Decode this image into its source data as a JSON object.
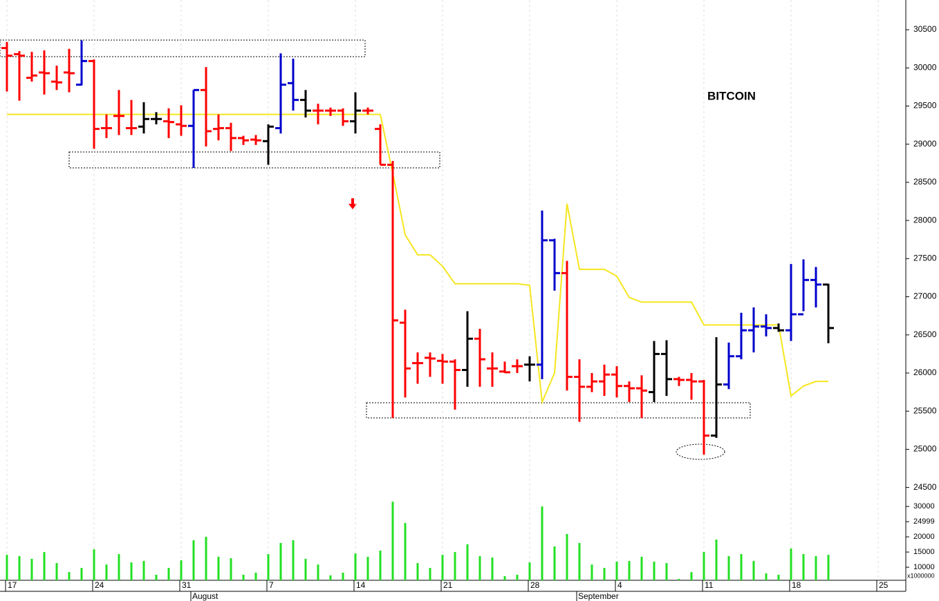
{
  "chart_data": {
    "type": "ohlc",
    "title": "BITCOIN",
    "categories": [
      "17",
      null,
      null,
      null,
      null,
      null,
      null,
      "24",
      null,
      null,
      null,
      null,
      null,
      null,
      "31",
      null,
      null,
      null,
      null,
      null,
      null,
      "7",
      null,
      null,
      null,
      null,
      null,
      null,
      "14",
      null,
      null,
      null,
      null,
      null,
      null,
      "21",
      null,
      null,
      null,
      null,
      null,
      null,
      "28",
      null,
      null,
      null,
      null,
      null,
      null,
      "4",
      null,
      null,
      null,
      null,
      null,
      null,
      "11",
      null,
      null,
      null,
      null,
      null,
      null,
      "18",
      null,
      null,
      null,
      null,
      null,
      null,
      "25"
    ],
    "month_labels": [
      null,
      null,
      null,
      null,
      null,
      null,
      null,
      null,
      null,
      null,
      null,
      null,
      null,
      null,
      null,
      "August",
      null,
      null,
      null,
      null,
      null,
      null,
      null,
      null,
      null,
      null,
      null,
      null,
      null,
      null,
      null,
      null,
      null,
      null,
      null,
      null,
      null,
      null,
      null,
      null,
      null,
      null,
      null,
      null,
      null,
      null,
      "September",
      null,
      null,
      null,
      null,
      null,
      null,
      null,
      null,
      null,
      null,
      null,
      null,
      null,
      null,
      null,
      null,
      null,
      null,
      null,
      null,
      null,
      null,
      null,
      null
    ],
    "ylim": [
      24370,
      30890
    ],
    "yticks": [
      24500,
      25000,
      25500,
      26000,
      26500,
      27000,
      27500,
      28000,
      28500,
      29000,
      29500,
      30000,
      30500
    ],
    "ohlc": [
      {
        "open": 30260,
        "high": 30340,
        "low": 29690,
        "close": 30160,
        "color": "#ff0000"
      },
      {
        "open": 30180,
        "high": 30220,
        "low": 29570,
        "close": 30160,
        "color": "#ff0000"
      },
      {
        "open": 29870,
        "high": 30210,
        "low": 29820,
        "close": 29900,
        "color": "#ff0000"
      },
      {
        "open": 29940,
        "high": 30230,
        "low": 29650,
        "close": 29930,
        "color": "#ff0000"
      },
      {
        "open": 29820,
        "high": 30030,
        "low": 29710,
        "close": 29810,
        "color": "#ff0000"
      },
      {
        "open": 29940,
        "high": 30250,
        "low": 29680,
        "close": 29930,
        "color": "#ff0000"
      },
      {
        "open": 29780,
        "high": 30360,
        "low": 29770,
        "close": 30090,
        "color": "#0000cc"
      },
      {
        "open": 30090,
        "high": 30110,
        "low": 28940,
        "close": 29200,
        "color": "#ff0000"
      },
      {
        "open": 29210,
        "high": 29390,
        "low": 29080,
        "close": 29210,
        "color": "#ff0000"
      },
      {
        "open": 29370,
        "high": 29710,
        "low": 29120,
        "close": 29370,
        "color": "#ff0000"
      },
      {
        "open": 29210,
        "high": 29580,
        "low": 29120,
        "close": 29210,
        "color": "#ff0000"
      },
      {
        "open": 29230,
        "high": 29550,
        "low": 29140,
        "close": 29330,
        "color": "#000000"
      },
      {
        "open": 29330,
        "high": 29420,
        "low": 29260,
        "close": 29330,
        "color": "#000000"
      },
      {
        "open": 29300,
        "high": 29470,
        "low": 29080,
        "close": 29290,
        "color": "#ff0000"
      },
      {
        "open": 29260,
        "high": 29510,
        "low": 29110,
        "close": 29240,
        "color": "#ff0000"
      },
      {
        "open": 29240,
        "high": 29710,
        "low": 28690,
        "close": 29710,
        "color": "#0000cc"
      },
      {
        "open": 29710,
        "high": 30010,
        "low": 28970,
        "close": 29170,
        "color": "#ff0000"
      },
      {
        "open": 29200,
        "high": 29390,
        "low": 29050,
        "close": 29210,
        "color": "#ff0000"
      },
      {
        "open": 29210,
        "high": 29280,
        "low": 28910,
        "close": 29080,
        "color": "#ff0000"
      },
      {
        "open": 29080,
        "high": 29110,
        "low": 28990,
        "close": 29050,
        "color": "#ff0000"
      },
      {
        "open": 29060,
        "high": 29120,
        "low": 28990,
        "close": 29050,
        "color": "#ff0000"
      },
      {
        "open": 29040,
        "high": 29260,
        "low": 28730,
        "close": 29230,
        "color": "#000000"
      },
      {
        "open": 29210,
        "high": 30190,
        "low": 29140,
        "close": 29780,
        "color": "#0000cc"
      },
      {
        "open": 29800,
        "high": 30120,
        "low": 29440,
        "close": 29580,
        "color": "#0000cc"
      },
      {
        "open": 29580,
        "high": 29710,
        "low": 29350,
        "close": 29440,
        "color": "#000000"
      },
      {
        "open": 29440,
        "high": 29530,
        "low": 29260,
        "close": 29440,
        "color": "#ff0000"
      },
      {
        "open": 29440,
        "high": 29480,
        "low": 29370,
        "close": 29440,
        "color": "#ff0000"
      },
      {
        "open": 29440,
        "high": 29470,
        "low": 29240,
        "close": 29300,
        "color": "#ff0000"
      },
      {
        "open": 29300,
        "high": 29680,
        "low": 29140,
        "close": 29440,
        "color": "#000000"
      },
      {
        "open": 29440,
        "high": 29480,
        "low": 29390,
        "close": 29440,
        "color": "#ff0000"
      },
      {
        "open": 29200,
        "high": 29260,
        "low": 28730,
        "close": 28730,
        "color": "#ff0000"
      },
      {
        "open": 28730,
        "high": 28780,
        "low": 25410,
        "close": 26690,
        "color": "#ff0000"
      },
      {
        "open": 26660,
        "high": 26830,
        "low": 25680,
        "close": 26060,
        "color": "#ff0000"
      },
      {
        "open": 26130,
        "high": 26270,
        "low": 25860,
        "close": 26130,
        "color": "#ff0000"
      },
      {
        "open": 26200,
        "high": 26270,
        "low": 25950,
        "close": 26190,
        "color": "#ff0000"
      },
      {
        "open": 26160,
        "high": 26250,
        "low": 25860,
        "close": 26150,
        "color": "#ff0000"
      },
      {
        "open": 26150,
        "high": 26180,
        "low": 25520,
        "close": 26040,
        "color": "#ff0000"
      },
      {
        "open": 26040,
        "high": 26810,
        "low": 25820,
        "close": 26450,
        "color": "#000000"
      },
      {
        "open": 26450,
        "high": 26580,
        "low": 25820,
        "close": 26180,
        "color": "#ff0000"
      },
      {
        "open": 26060,
        "high": 26270,
        "low": 25820,
        "close": 26060,
        "color": "#ff0000"
      },
      {
        "open": 26020,
        "high": 26150,
        "low": 26000,
        "close": 26010,
        "color": "#ff0000"
      },
      {
        "open": 26090,
        "high": 26180,
        "low": 26000,
        "close": 26090,
        "color": "#ff0000"
      },
      {
        "open": 26110,
        "high": 26220,
        "low": 25890,
        "close": 26110,
        "color": "#000000"
      },
      {
        "open": 26110,
        "high": 28130,
        "low": 25920,
        "close": 27740,
        "color": "#0000cc"
      },
      {
        "open": 27740,
        "high": 27760,
        "low": 27080,
        "close": 27310,
        "color": "#0000cc"
      },
      {
        "open": 27310,
        "high": 27470,
        "low": 25770,
        "close": 25950,
        "color": "#ff0000"
      },
      {
        "open": 25950,
        "high": 26180,
        "low": 25360,
        "close": 25820,
        "color": "#ff0000"
      },
      {
        "open": 25820,
        "high": 26000,
        "low": 25750,
        "close": 25890,
        "color": "#ff0000"
      },
      {
        "open": 25890,
        "high": 26110,
        "low": 25700,
        "close": 25980,
        "color": "#ff0000"
      },
      {
        "open": 25980,
        "high": 26090,
        "low": 25680,
        "close": 25830,
        "color": "#ff0000"
      },
      {
        "open": 25830,
        "high": 25890,
        "low": 25620,
        "close": 25800,
        "color": "#ff0000"
      },
      {
        "open": 25800,
        "high": 25970,
        "low": 25410,
        "close": 25770,
        "color": "#ff0000"
      },
      {
        "open": 25750,
        "high": 26420,
        "low": 25620,
        "close": 26250,
        "color": "#000000"
      },
      {
        "open": 26250,
        "high": 26430,
        "low": 25700,
        "close": 25920,
        "color": "#000000"
      },
      {
        "open": 25920,
        "high": 25950,
        "low": 25830,
        "close": 25910,
        "color": "#ff0000"
      },
      {
        "open": 25910,
        "high": 26000,
        "low": 25650,
        "close": 25890,
        "color": "#ff0000"
      },
      {
        "open": 25890,
        "high": 25910,
        "low": 24930,
        "close": 25180,
        "color": "#ff0000"
      },
      {
        "open": 25180,
        "high": 26470,
        "low": 25150,
        "close": 25850,
        "color": "#000000"
      },
      {
        "open": 25850,
        "high": 26400,
        "low": 25790,
        "close": 26220,
        "color": "#0000cc"
      },
      {
        "open": 26220,
        "high": 26790,
        "low": 26180,
        "close": 26560,
        "color": "#0000cc"
      },
      {
        "open": 26560,
        "high": 26860,
        "low": 26270,
        "close": 26610,
        "color": "#0000cc"
      },
      {
        "open": 26610,
        "high": 26770,
        "low": 26480,
        "close": 26590,
        "color": "#0000cc"
      },
      {
        "open": 26590,
        "high": 26650,
        "low": 26540,
        "close": 26560,
        "color": "#000000"
      },
      {
        "open": 26560,
        "high": 27430,
        "low": 26420,
        "close": 26770,
        "color": "#0000cc"
      },
      {
        "open": 26770,
        "high": 27490,
        "low": 26810,
        "close": 27220,
        "color": "#0000cc"
      },
      {
        "open": 27220,
        "high": 27390,
        "low": 26860,
        "close": 27160,
        "color": "#0000cc"
      },
      {
        "open": 27160,
        "high": 27170,
        "low": 26390,
        "close": 26590,
        "color": "#000000"
      },
      null,
      null,
      null,
      null
    ],
    "line": {
      "color": "#f5e61e",
      "values": [
        29390,
        29390,
        29390,
        29390,
        29390,
        29390,
        29390,
        29390,
        29390,
        29390,
        29390,
        29390,
        29390,
        29390,
        29390,
        29390,
        29390,
        29390,
        29390,
        29390,
        29390,
        29390,
        29390,
        29390,
        29390,
        29390,
        29390,
        29390,
        29390,
        29390,
        29390,
        28620,
        27810,
        27550,
        27550,
        27400,
        27170,
        27170,
        27170,
        27170,
        27170,
        27170,
        27150,
        25620,
        26000,
        28220,
        27360,
        27360,
        27360,
        27270,
        26990,
        26930,
        26930,
        26930,
        26930,
        26930,
        26630,
        26630,
        26630,
        26630,
        26630,
        26630,
        26630,
        25700,
        25830,
        25890,
        25890,
        null,
        null,
        null,
        null
      ]
    },
    "volume": {
      "color": "#22e022",
      "unit_label": "x1000000",
      "ylim": [
        5700,
        33000
      ],
      "yticks": [
        10000,
        15000,
        20000,
        24999,
        30000
      ],
      "values": [
        14090,
        13650,
        12770,
        15000,
        11360,
        8400,
        9770,
        15910,
        10890,
        14320,
        11590,
        12050,
        7520,
        9770,
        12270,
        18880,
        20000,
        13430,
        12950,
        7520,
        8200,
        14320,
        17980,
        18880,
        12770,
        10890,
        7320,
        8200,
        14550,
        13430,
        15470,
        31590,
        24560,
        11360,
        9770,
        14090,
        15000,
        17540,
        13650,
        13200,
        7060,
        7520,
        11590,
        30020,
        16840,
        20930,
        17980,
        10890,
        9770,
        11840,
        12050,
        13430,
        11840,
        11360,
        6150,
        8400,
        15000,
        19110,
        13650,
        14320,
        12050,
        7990,
        7520,
        16150,
        14320,
        13650,
        14090,
        null,
        null,
        null,
        null
      ]
    }
  }
}
